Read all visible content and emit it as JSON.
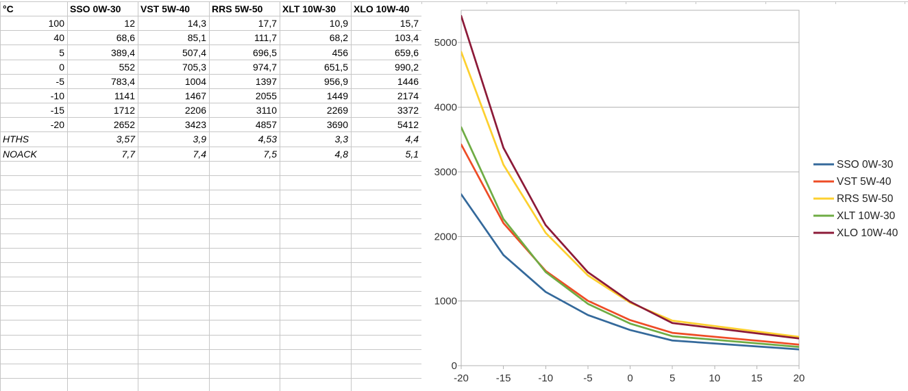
{
  "table": {
    "header": [
      "°C",
      "SSO 0W-30",
      "VST 5W-40",
      "RRS 5W-50",
      "XLT 10W-30",
      "XLO 10W-40"
    ],
    "rows": [
      {
        "label": "100",
        "values": [
          "12",
          "14,3",
          "17,7",
          "10,9",
          "15,7"
        ],
        "italic": false
      },
      {
        "label": "40",
        "values": [
          "68,6",
          "85,1",
          "111,7",
          "68,2",
          "103,4"
        ],
        "italic": false
      },
      {
        "label": "5",
        "values": [
          "389,4",
          "507,4",
          "696,5",
          "456",
          "659,6"
        ],
        "italic": false
      },
      {
        "label": "0",
        "values": [
          "552",
          "705,3",
          "974,7",
          "651,5",
          "990,2"
        ],
        "italic": false
      },
      {
        "label": "-5",
        "values": [
          "783,4",
          "1004",
          "1397",
          "956,9",
          "1446"
        ],
        "italic": false
      },
      {
        "label": "-10",
        "values": [
          "1141",
          "1467",
          "2055",
          "1449",
          "2174"
        ],
        "italic": false
      },
      {
        "label": "-15",
        "values": [
          "1712",
          "2206",
          "3110",
          "2269",
          "3372"
        ],
        "italic": false
      },
      {
        "label": "-20",
        "values": [
          "2652",
          "3423",
          "4857",
          "3690",
          "5412"
        ],
        "italic": false
      },
      {
        "label": "HTHS",
        "values": [
          "3,57",
          "3,9",
          "4,53",
          "3,3",
          "4,4"
        ],
        "italic": true
      },
      {
        "label": "NOACK",
        "values": [
          "7,7",
          "7,4",
          "7,5",
          "4,8",
          "5,1"
        ],
        "italic": true
      }
    ]
  },
  "chart_data": {
    "type": "line",
    "x": [
      -20,
      -15,
      -10,
      -5,
      0,
      5,
      40
    ],
    "series": [
      {
        "name": "SSO 0W-30",
        "color": "#34699b",
        "values": [
          2652,
          1712,
          1141,
          783.4,
          552,
          389.4,
          68.6
        ]
      },
      {
        "name": "VST 5W-40",
        "color": "#ee4c26",
        "values": [
          3423,
          2206,
          1467,
          1004,
          705.3,
          507.4,
          85.1
        ]
      },
      {
        "name": "RRS 5W-50",
        "color": "#fdd02f",
        "values": [
          4857,
          3110,
          2055,
          1397,
          974.7,
          696.5,
          111.7
        ]
      },
      {
        "name": "XLT 10W-30",
        "color": "#6fac44",
        "values": [
          3690,
          2269,
          1449,
          956.9,
          651.5,
          456,
          68.2
        ]
      },
      {
        "name": "XLO 10W-40",
        "color": "#8c1a38",
        "values": [
          5412,
          3372,
          2174,
          1446,
          990.2,
          659.6,
          103.4
        ]
      }
    ],
    "title": "",
    "xlabel": "",
    "ylabel": "",
    "xlim": [
      -20,
      20
    ],
    "ylim": [
      0,
      5500
    ],
    "x_ticks": [
      -20,
      -15,
      -10,
      -5,
      0,
      5,
      10,
      15,
      20
    ],
    "y_ticks": [
      0,
      1000,
      2000,
      3000,
      4000,
      5000
    ],
    "grid": true,
    "legend_position": "right"
  },
  "colors": {
    "sheet_gridline": "#c6c6c6",
    "chart_gridline": "#b3b3b3",
    "axis_text": "#333333",
    "legend_text": "#222222"
  }
}
